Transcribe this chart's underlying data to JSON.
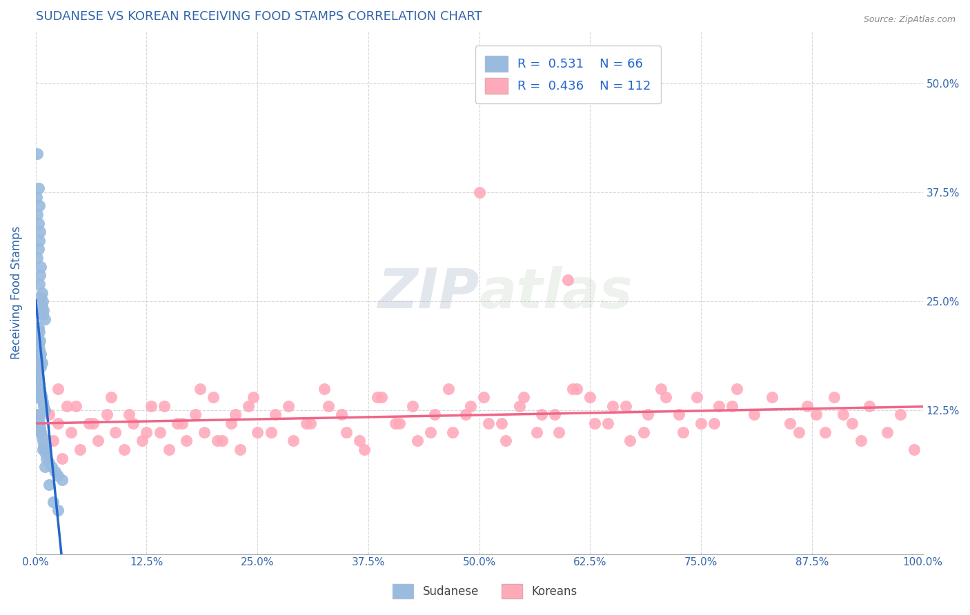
{
  "title": "SUDANESE VS KOREAN RECEIVING FOOD STAMPS CORRELATION CHART",
  "source_text": "Source: ZipAtlas.com",
  "ylabel": "Receiving Food Stamps",
  "xlim": [
    0.0,
    1.0
  ],
  "ylim": [
    -0.04,
    0.56
  ],
  "xtick_labels": [
    "0.0%",
    "12.5%",
    "25.0%",
    "37.5%",
    "50.0%",
    "62.5%",
    "75.0%",
    "87.5%",
    "100.0%"
  ],
  "xtick_vals": [
    0.0,
    0.125,
    0.25,
    0.375,
    0.5,
    0.625,
    0.75,
    0.875,
    1.0
  ],
  "ytick_vals": [
    0.125,
    0.25,
    0.375,
    0.5
  ],
  "right_ytick_labels": [
    "12.5%",
    "25.0%",
    "37.5%",
    "50.0%"
  ],
  "right_ytick_vals": [
    0.125,
    0.25,
    0.375,
    0.5
  ],
  "watermark_zip": "ZIP",
  "watermark_atlas": "atlas",
  "sudanese_R": 0.531,
  "sudanese_N": 66,
  "korean_R": 0.436,
  "korean_N": 112,
  "blue_dot_color": "#99BBDD",
  "pink_dot_color": "#FFAABB",
  "blue_line_color": "#2266CC",
  "pink_line_color": "#EE6688",
  "legend_label_blue": "Sudanese",
  "legend_label_pink": "Koreans",
  "title_color": "#3366AA",
  "axis_label_color": "#3366AA",
  "tick_color": "#3366AA",
  "sudanese_x": [
    0.002,
    0.003,
    0.001,
    0.004,
    0.002,
    0.003,
    0.005,
    0.004,
    0.003,
    0.002,
    0.006,
    0.005,
    0.004,
    0.007,
    0.006,
    0.008,
    0.007,
    0.009,
    0.008,
    0.01,
    0.003,
    0.004,
    0.002,
    0.005,
    0.003,
    0.004,
    0.006,
    0.005,
    0.007,
    0.006,
    0.001,
    0.002,
    0.003,
    0.004,
    0.005,
    0.006,
    0.007,
    0.008,
    0.009,
    0.01,
    0.002,
    0.003,
    0.004,
    0.005,
    0.006,
    0.007,
    0.008,
    0.009,
    0.01,
    0.011,
    0.012,
    0.015,
    0.018,
    0.022,
    0.025,
    0.03,
    0.005,
    0.003,
    0.002,
    0.004,
    0.006,
    0.008,
    0.01,
    0.015,
    0.02,
    0.025
  ],
  "sudanese_y": [
    0.42,
    0.38,
    0.37,
    0.36,
    0.35,
    0.34,
    0.33,
    0.32,
    0.31,
    0.3,
    0.29,
    0.28,
    0.27,
    0.26,
    0.255,
    0.25,
    0.245,
    0.24,
    0.235,
    0.23,
    0.22,
    0.215,
    0.21,
    0.205,
    0.2,
    0.195,
    0.19,
    0.185,
    0.18,
    0.175,
    0.17,
    0.165,
    0.16,
    0.155,
    0.15,
    0.145,
    0.14,
    0.135,
    0.13,
    0.125,
    0.12,
    0.115,
    0.11,
    0.105,
    0.1,
    0.095,
    0.09,
    0.085,
    0.08,
    0.075,
    0.07,
    0.065,
    0.06,
    0.055,
    0.05,
    0.045,
    0.18,
    0.16,
    0.14,
    0.12,
    0.1,
    0.08,
    0.06,
    0.04,
    0.02,
    0.01
  ],
  "korean_x": [
    0.005,
    0.01,
    0.015,
    0.02,
    0.025,
    0.03,
    0.035,
    0.04,
    0.05,
    0.06,
    0.07,
    0.08,
    0.09,
    0.1,
    0.11,
    0.12,
    0.13,
    0.14,
    0.15,
    0.16,
    0.17,
    0.18,
    0.19,
    0.2,
    0.21,
    0.22,
    0.23,
    0.24,
    0.25,
    0.27,
    0.29,
    0.31,
    0.33,
    0.35,
    0.37,
    0.39,
    0.41,
    0.43,
    0.45,
    0.47,
    0.49,
    0.51,
    0.53,
    0.55,
    0.57,
    0.59,
    0.61,
    0.63,
    0.65,
    0.67,
    0.69,
    0.71,
    0.73,
    0.75,
    0.77,
    0.79,
    0.81,
    0.83,
    0.85,
    0.87,
    0.89,
    0.91,
    0.93,
    0.025,
    0.045,
    0.065,
    0.085,
    0.105,
    0.125,
    0.145,
    0.165,
    0.185,
    0.205,
    0.225,
    0.245,
    0.265,
    0.285,
    0.305,
    0.325,
    0.345,
    0.365,
    0.385,
    0.405,
    0.425,
    0.445,
    0.465,
    0.485,
    0.505,
    0.525,
    0.545,
    0.565,
    0.585,
    0.605,
    0.625,
    0.645,
    0.665,
    0.685,
    0.705,
    0.725,
    0.745,
    0.765,
    0.785,
    0.86,
    0.88,
    0.9,
    0.92,
    0.94,
    0.96,
    0.975,
    0.99,
    0.5,
    0.6
  ],
  "korean_y": [
    0.1,
    0.08,
    0.12,
    0.09,
    0.11,
    0.07,
    0.13,
    0.1,
    0.08,
    0.11,
    0.09,
    0.12,
    0.1,
    0.08,
    0.11,
    0.09,
    0.13,
    0.1,
    0.08,
    0.11,
    0.09,
    0.12,
    0.1,
    0.14,
    0.09,
    0.11,
    0.08,
    0.13,
    0.1,
    0.12,
    0.09,
    0.11,
    0.13,
    0.1,
    0.08,
    0.14,
    0.11,
    0.09,
    0.12,
    0.1,
    0.13,
    0.11,
    0.09,
    0.14,
    0.12,
    0.1,
    0.15,
    0.11,
    0.13,
    0.09,
    0.12,
    0.14,
    0.1,
    0.11,
    0.13,
    0.15,
    0.12,
    0.14,
    0.11,
    0.13,
    0.1,
    0.12,
    0.09,
    0.15,
    0.13,
    0.11,
    0.14,
    0.12,
    0.1,
    0.13,
    0.11,
    0.15,
    0.09,
    0.12,
    0.14,
    0.1,
    0.13,
    0.11,
    0.15,
    0.12,
    0.09,
    0.14,
    0.11,
    0.13,
    0.1,
    0.15,
    0.12,
    0.14,
    0.11,
    0.13,
    0.1,
    0.12,
    0.15,
    0.14,
    0.11,
    0.13,
    0.1,
    0.15,
    0.12,
    0.14,
    0.11,
    0.13,
    0.1,
    0.12,
    0.14,
    0.11,
    0.13,
    0.1,
    0.12,
    0.08,
    0.375,
    0.275
  ]
}
